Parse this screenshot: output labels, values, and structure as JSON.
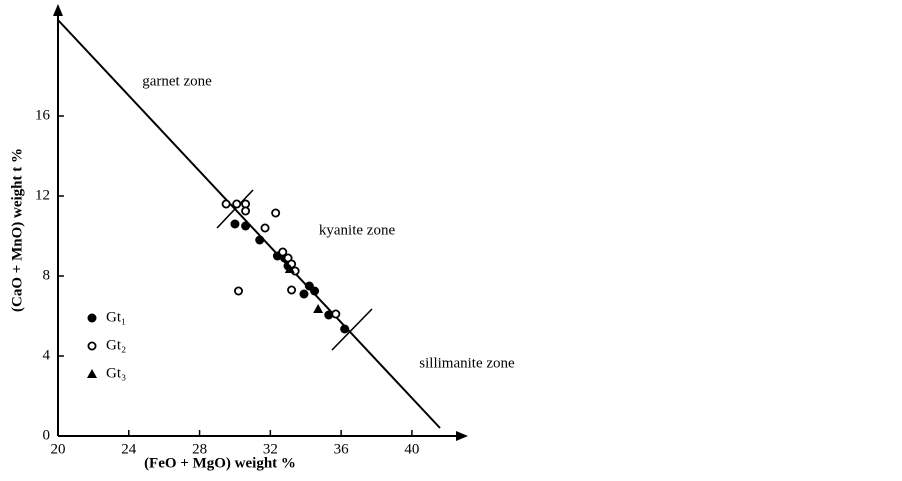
{
  "chart_data": {
    "type": "scatter",
    "x_label": "(FeO + MgO) weight %",
    "y_label": "(CaO + MnO) weight t %",
    "annotations": [
      "garnet zone",
      "kyanite zone",
      "sillimanite zone"
    ],
    "xlim": [
      20,
      43
    ],
    "ylim": [
      0,
      21.5
    ],
    "xticks": [
      20,
      24,
      28,
      32,
      36,
      40
    ],
    "yticks": [
      0,
      4,
      8,
      12,
      16
    ],
    "grid": false,
    "legend": "lower left",
    "series": [
      {
        "name": "Gt₁",
        "marker": "filled-circle",
        "color": "#000000",
        "x": [
          30.0,
          30.6,
          31.4,
          32.4,
          32.8,
          33.0,
          33.9,
          34.2,
          34.5,
          35.3,
          36.2
        ],
        "values": [
          10.6,
          10.5,
          9.8,
          9.0,
          8.9,
          8.5,
          7.1,
          7.5,
          7.25,
          6.05,
          5.35
        ]
      },
      {
        "name": "Gt₂",
        "marker": "open-circle",
        "color": "#000000",
        "x": [
          29.5,
          30.1,
          30.6,
          30.6,
          31.7,
          32.3,
          32.7,
          33.0,
          33.2,
          33.4,
          30.2,
          33.2,
          35.7
        ],
        "values": [
          11.6,
          11.6,
          11.6,
          11.25,
          10.4,
          11.15,
          9.2,
          8.9,
          8.6,
          8.25,
          7.25,
          7.3,
          6.1
        ]
      },
      {
        "name": "Gt₃",
        "marker": "triangle",
        "color": "#000000",
        "x": [
          33.1,
          34.7
        ],
        "values": [
          8.35,
          6.35
        ]
      }
    ]
  }
}
